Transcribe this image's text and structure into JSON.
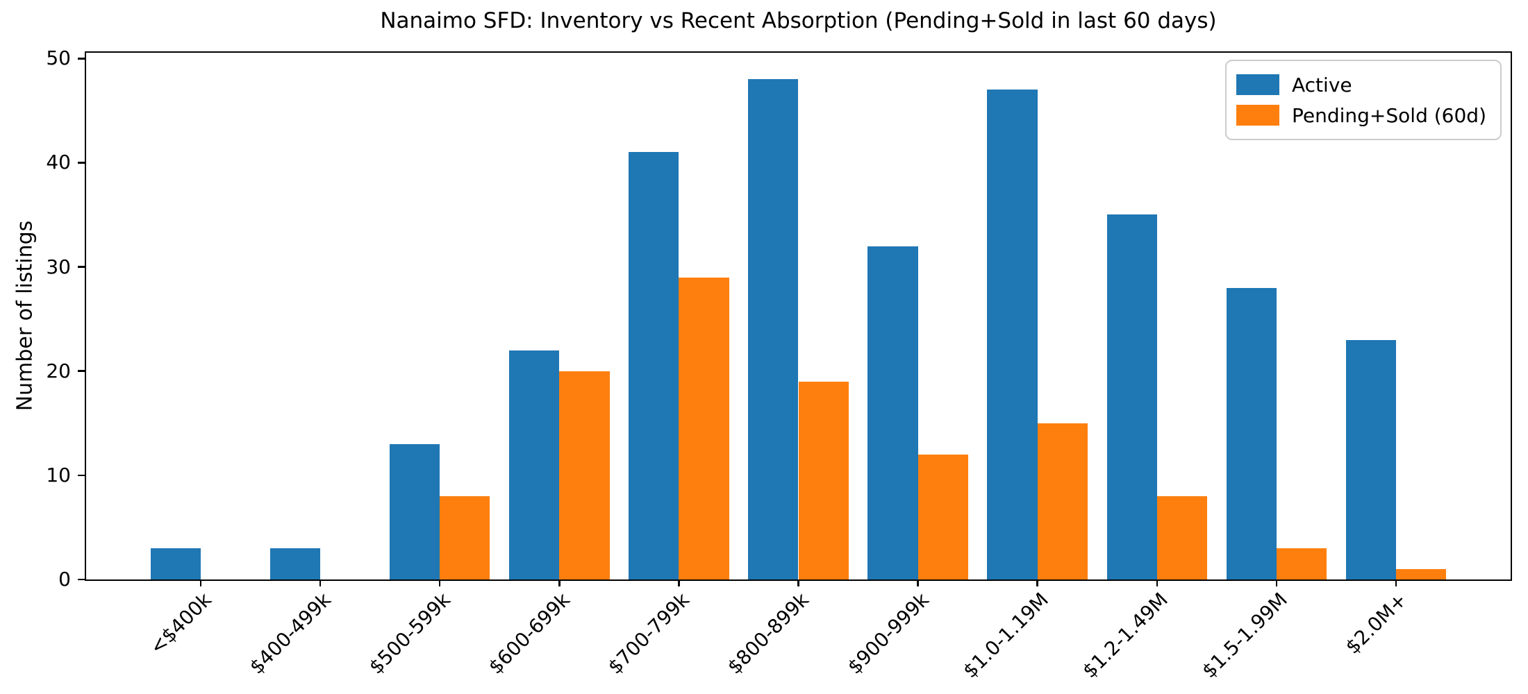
{
  "chart_data": {
    "type": "bar",
    "title": "Nanaimo SFD: Inventory vs Recent Absorption (Pending+Sold in last 60 days)",
    "xlabel": "",
    "ylabel": "Number of listings",
    "categories": [
      "<$400k",
      "$400-499k",
      "$500-599k",
      "$600-699k",
      "$700-799k",
      "$800-899k",
      "$900-999k",
      "$1.0-1.19M",
      "$1.2-1.49M",
      "$1.5-1.99M",
      "$2.0M+"
    ],
    "series": [
      {
        "name": "Active",
        "color": "#1f77b4",
        "values": [
          3,
          3,
          13,
          22,
          41,
          48,
          32,
          47,
          35,
          28,
          23
        ]
      },
      {
        "name": "Pending+Sold (60d)",
        "color": "#ff7f0e",
        "values": [
          0,
          0,
          8,
          20,
          29,
          19,
          12,
          15,
          8,
          3,
          1
        ]
      }
    ],
    "yticks": [
      0,
      10,
      20,
      30,
      40,
      50
    ],
    "ylim": [
      0,
      50.55
    ],
    "x_tick_rotation": 45,
    "grid": false,
    "legend_position": "upper right",
    "bar_width_fraction": 0.42,
    "background": "#ffffff",
    "spine_color": "#000000"
  }
}
